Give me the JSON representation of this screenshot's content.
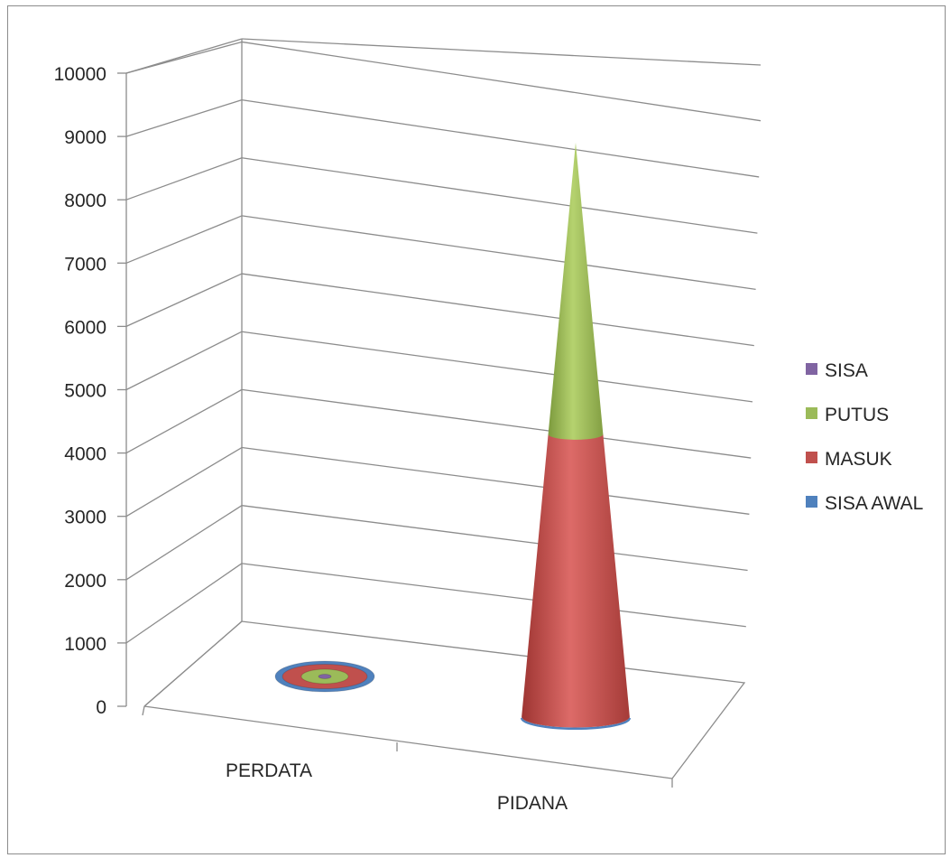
{
  "chart_data": {
    "type": "cone-3d-stacked",
    "title": "",
    "xlabel": "",
    "ylabel": "",
    "categories": [
      "PERDATA",
      "PIDANA"
    ],
    "series": [
      {
        "name": "SISA AWAL",
        "color": "#4f81bd",
        "values": [
          40,
          20
        ]
      },
      {
        "name": "MASUK",
        "color": "#c0504d",
        "values": [
          150,
          4340
        ]
      },
      {
        "name": "PUTUS",
        "color": "#9bbb59",
        "values": [
          120,
          4480
        ]
      },
      {
        "name": "SISA",
        "color": "#8064a2",
        "values": [
          40,
          0
        ]
      }
    ],
    "ylim": [
      0,
      10000
    ],
    "yticks": [
      0,
      1000,
      2000,
      3000,
      4000,
      5000,
      6000,
      7000,
      8000,
      9000,
      10000
    ],
    "legend_position": "right",
    "legend_order": [
      "SISA",
      "PUTUS",
      "MASUK",
      "SISA AWAL"
    ],
    "grid": true
  }
}
